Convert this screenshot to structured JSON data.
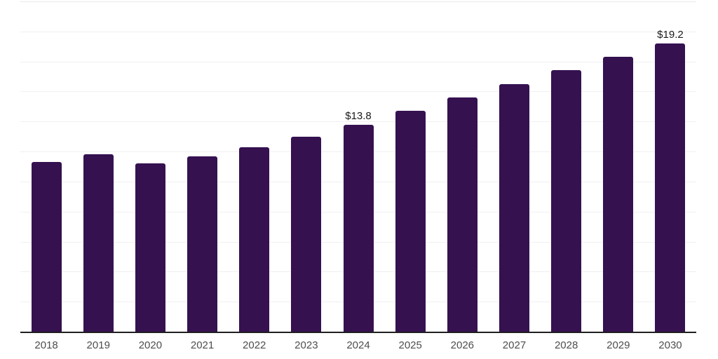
{
  "chart_data": {
    "type": "bar",
    "title": "",
    "xlabel": "",
    "ylabel": "",
    "categories": [
      "2018",
      "2019",
      "2020",
      "2021",
      "2022",
      "2023",
      "2024",
      "2025",
      "2026",
      "2027",
      "2028",
      "2029",
      "2030"
    ],
    "values": [
      11.3,
      11.8,
      11.2,
      11.7,
      12.3,
      13.0,
      13.8,
      14.7,
      15.6,
      16.5,
      17.4,
      18.3,
      19.2
    ],
    "data_labels": {
      "2024": "$13.8",
      "2030": "$19.2"
    },
    "ylim": [
      0,
      22
    ],
    "grid_step": 2,
    "grid": true,
    "legend": false,
    "y_tick_labels_visible": false,
    "colors": {
      "bar": "#351150",
      "gridline": "#f0f0f0",
      "top_gridline": "#e9e9e9",
      "axis_line": "#1f1f1f",
      "data_label_text": "#1a1a1a",
      "x_tick_text": "#4d4d4d",
      "background": "#ffffff"
    }
  }
}
